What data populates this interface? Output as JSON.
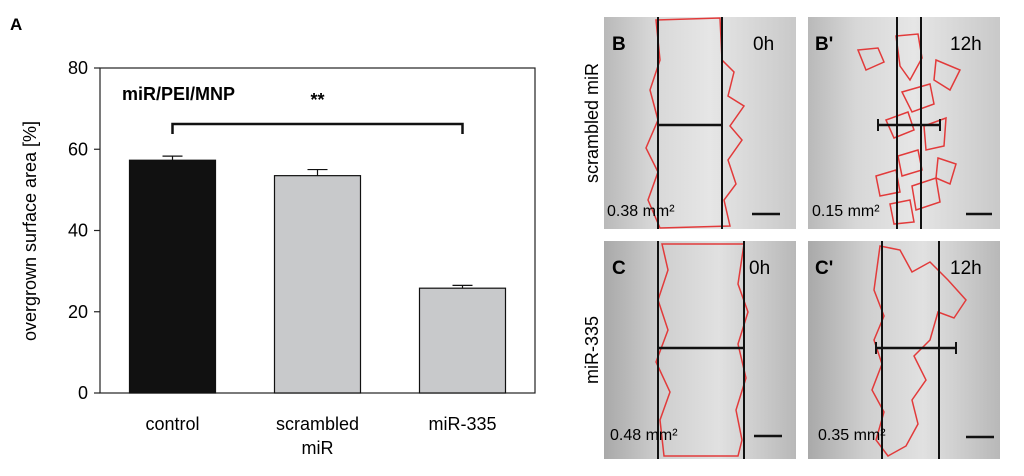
{
  "panel_label": "A",
  "chart_data": {
    "type": "bar",
    "title": "miR/PEI/MNP",
    "ylabel": "overgrown surface area [%]",
    "xlabel": "",
    "ylim": [
      0,
      80
    ],
    "yticks": [
      0,
      20,
      40,
      60,
      80
    ],
    "categories": [
      "control",
      "scrambled\nmiR",
      "miR-335"
    ],
    "values": [
      57.3,
      53.5,
      25.8
    ],
    "errors": [
      1.0,
      1.5,
      0.7
    ],
    "bar_colors": [
      "#111111",
      "#c8c9cb",
      "#c8c9cb"
    ],
    "significance": {
      "from": 0,
      "to": 2,
      "label": "**"
    }
  },
  "micrographs": {
    "row_labels": [
      "scrambled miR",
      "miR-335"
    ],
    "panels": [
      {
        "letter": "B",
        "time": "0h",
        "area": "0.38 mm²"
      },
      {
        "letter": "B'",
        "time": "12h",
        "area": "0.15 mm²"
      },
      {
        "letter": "C",
        "time": "0h",
        "area": "0.48 mm²"
      },
      {
        "letter": "C'",
        "time": "12h",
        "area": "0.35 mm²"
      }
    ]
  },
  "colors": {
    "outline": "#e23a3a",
    "line": "#111111"
  }
}
